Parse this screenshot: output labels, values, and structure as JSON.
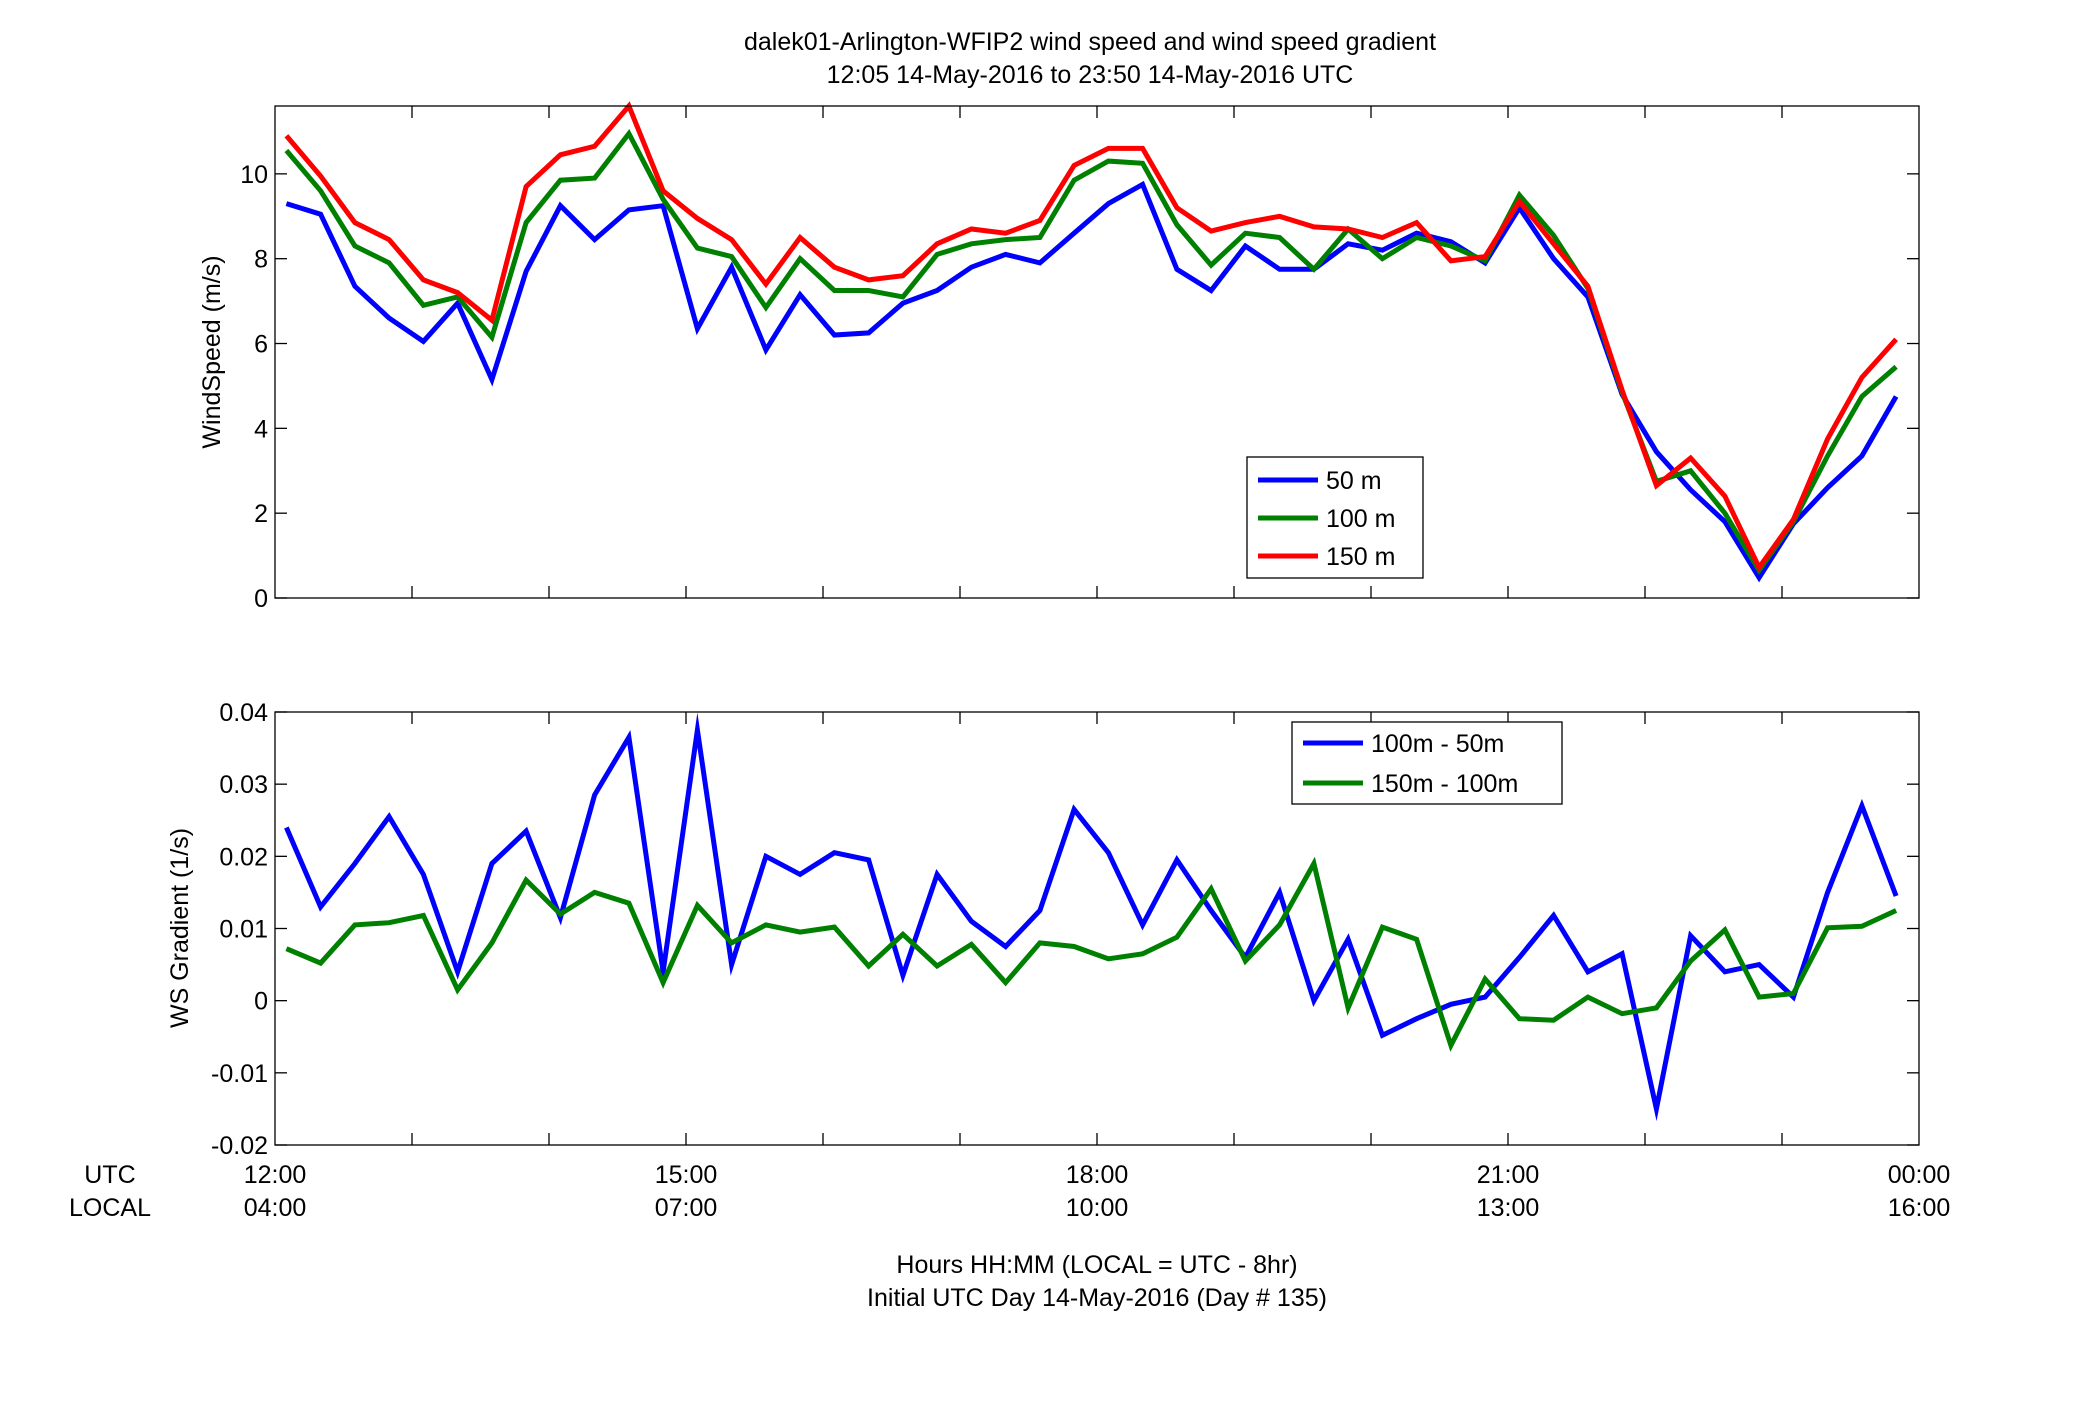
{
  "figure": {
    "title_line1": "dalek01-Arlington-WFIP2  wind speed and wind speed gradient",
    "title_line2": "12:05 14-May-2016 to 23:50 14-May-2016  UTC",
    "xlabel_line1": "Hours HH:MM  (LOCAL = UTC - 8hr)",
    "xlabel_line2": "Initial UTC Day 14-May-2016 (Day # 135)",
    "row_label_utc": "UTC",
    "row_label_local": "LOCAL",
    "utc_tick_labels": [
      "12:00",
      "15:00",
      "18:00",
      "21:00",
      "00:00"
    ],
    "local_tick_labels": [
      "04:00",
      "07:00",
      "10:00",
      "13:00",
      "16:00"
    ]
  },
  "chart_data": [
    {
      "type": "line",
      "ylabel": "WindSpeed (m/s)",
      "xlim": [
        12.0,
        24.0
      ],
      "ylim": [
        0,
        11.6
      ],
      "yticks": [
        0,
        2,
        4,
        6,
        8,
        10
      ],
      "ytick_labels": [
        "0",
        "2",
        "4",
        "6",
        "8",
        "10"
      ],
      "grid": false,
      "legend_position": "lower-right",
      "x": [
        12.083,
        12.333,
        12.583,
        12.833,
        13.083,
        13.333,
        13.583,
        13.833,
        14.083,
        14.333,
        14.583,
        14.833,
        15.083,
        15.333,
        15.583,
        15.833,
        16.083,
        16.333,
        16.583,
        16.833,
        17.083,
        17.333,
        17.583,
        17.833,
        18.083,
        18.333,
        18.583,
        18.833,
        19.083,
        19.333,
        19.583,
        19.833,
        20.083,
        20.333,
        20.583,
        20.833,
        21.083,
        21.333,
        21.583,
        21.833,
        22.083,
        22.333,
        22.583,
        22.833,
        23.083,
        23.333,
        23.583,
        23.833
      ],
      "series": [
        {
          "name": "50 m",
          "color": "#0000ff",
          "values": [
            9.3,
            9.05,
            7.35,
            6.6,
            6.05,
            6.95,
            5.15,
            7.7,
            9.25,
            8.45,
            9.15,
            9.25,
            6.35,
            7.8,
            5.85,
            7.15,
            6.2,
            6.25,
            6.95,
            7.25,
            7.8,
            8.1,
            7.9,
            8.6,
            9.3,
            9.75,
            7.75,
            7.25,
            8.3,
            7.75,
            7.75,
            8.35,
            8.2,
            8.6,
            8.4,
            7.9,
            9.2,
            8.0,
            7.1,
            4.8,
            3.45,
            2.55,
            1.8,
            0.48,
            1.75,
            2.6,
            3.35,
            4.75
          ]
        },
        {
          "name": "100 m",
          "color": "#008000",
          "values": [
            10.55,
            9.6,
            8.3,
            7.9,
            6.9,
            7.1,
            6.15,
            8.85,
            9.85,
            9.9,
            10.95,
            9.4,
            8.25,
            8.05,
            6.85,
            8.0,
            7.25,
            7.25,
            7.1,
            8.1,
            8.35,
            8.45,
            8.5,
            9.85,
            10.3,
            10.25,
            8.8,
            7.85,
            8.6,
            8.5,
            7.75,
            8.7,
            8.0,
            8.5,
            8.3,
            7.95,
            9.5,
            8.55,
            7.3,
            4.85,
            2.75,
            3.0,
            2.0,
            0.65,
            1.8,
            3.35,
            4.75,
            5.45
          ]
        },
        {
          "name": "150 m",
          "color": "#ff0000",
          "values": [
            10.9,
            9.95,
            8.85,
            8.45,
            7.5,
            7.2,
            6.55,
            9.7,
            10.45,
            10.65,
            11.6,
            9.6,
            8.95,
            8.45,
            7.4,
            8.5,
            7.8,
            7.5,
            7.6,
            8.35,
            8.7,
            8.6,
            8.9,
            10.2,
            10.6,
            10.6,
            9.2,
            8.65,
            8.85,
            9.0,
            8.75,
            8.7,
            8.5,
            8.85,
            7.95,
            8.05,
            9.35,
            8.35,
            7.35,
            4.9,
            2.65,
            3.3,
            2.4,
            0.72,
            1.85,
            3.75,
            5.2,
            6.1
          ]
        }
      ]
    },
    {
      "type": "line",
      "ylabel": "WS Gradient (1/s)",
      "xlim": [
        12.0,
        24.0
      ],
      "ylim": [
        -0.02,
        0.04
      ],
      "yticks": [
        -0.02,
        -0.01,
        0,
        0.01,
        0.02,
        0.03,
        0.04
      ],
      "ytick_labels": [
        "-0.02",
        "-0.01",
        "0",
        "0.01",
        "0.02",
        "0.03",
        "0.04"
      ],
      "grid": false,
      "legend_position": "upper-right",
      "x": [
        12.083,
        12.333,
        12.583,
        12.833,
        13.083,
        13.333,
        13.583,
        13.833,
        14.083,
        14.333,
        14.583,
        14.833,
        15.083,
        15.333,
        15.583,
        15.833,
        16.083,
        16.333,
        16.583,
        16.833,
        17.083,
        17.333,
        17.583,
        17.833,
        18.083,
        18.333,
        18.583,
        18.833,
        19.083,
        19.333,
        19.583,
        19.833,
        20.083,
        20.333,
        20.583,
        20.833,
        21.083,
        21.333,
        21.583,
        21.833,
        22.083,
        22.333,
        22.583,
        22.833,
        23.083,
        23.333,
        23.583,
        23.833
      ],
      "series": [
        {
          "name": "100m - 50m",
          "color": "#0000ff",
          "values": [
            0.024,
            0.013,
            0.019,
            0.0255,
            0.0175,
            0.004,
            0.019,
            0.0235,
            0.0115,
            0.0285,
            0.0365,
            0.004,
            0.0375,
            0.005,
            0.02,
            0.0175,
            0.0205,
            0.0195,
            0.0035,
            0.0175,
            0.011,
            0.0075,
            0.0125,
            0.0265,
            0.0205,
            0.0105,
            0.0195,
            0.0125,
            0.006,
            0.015,
            0.0,
            0.0085,
            -0.0048,
            -0.0025,
            -0.0005,
            0.0005,
            0.006,
            0.0118,
            0.004,
            0.0065,
            -0.015,
            0.009,
            0.004,
            0.005,
            0.0005,
            0.015,
            0.027,
            0.0145
          ]
        },
        {
          "name": "150m - 100m",
          "color": "#008000",
          "values": [
            0.0072,
            0.0052,
            0.0105,
            0.0108,
            0.0118,
            0.0015,
            0.008,
            0.0167,
            0.012,
            0.015,
            0.0135,
            0.0025,
            0.0132,
            0.008,
            0.0105,
            0.0095,
            0.0102,
            0.0048,
            0.0092,
            0.0048,
            0.0078,
            0.0025,
            0.008,
            0.0075,
            0.0058,
            0.0065,
            0.0088,
            0.0155,
            0.0055,
            0.0105,
            0.019,
            -0.001,
            0.0102,
            0.0085,
            -0.0062,
            0.003,
            -0.0025,
            -0.0027,
            0.0005,
            -0.0018,
            -0.001,
            0.0055,
            0.0098,
            0.0005,
            0.001,
            0.0101,
            0.0103,
            0.0125
          ]
        }
      ]
    }
  ]
}
